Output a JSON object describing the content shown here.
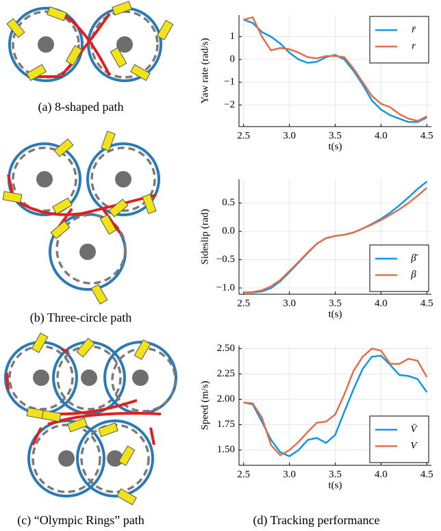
{
  "captions": [
    "(a) 8-shaped path",
    "(b) Three-circle path",
    "(c) “Olympic Rings” path",
    "(d) Tracking performance"
  ],
  "chart_data": [
    {
      "type": "line",
      "ylabel": "Yaw rate (rad/s)",
      "xlabel": "t(s)",
      "grid": true,
      "legend": "top-right",
      "x": [
        2.5,
        2.6,
        2.7,
        2.8,
        2.9,
        3.0,
        3.1,
        3.2,
        3.3,
        3.4,
        3.5,
        3.6,
        3.7,
        3.8,
        3.9,
        4.0,
        4.1,
        4.2,
        4.3,
        4.4,
        4.5
      ],
      "xlim": [
        2.45,
        4.55
      ],
      "xticks": [
        2.5,
        {
          "value": 3,
          "label": "3.0"
        },
        3.5,
        {
          "value": 4,
          "label": "4.0"
        },
        4.5
      ],
      "ylim": [
        -2.95,
        1.95
      ],
      "yticks": [
        {
          "value": -2,
          "label": "−2"
        },
        {
          "value": -1,
          "label": "−1"
        },
        0,
        1
      ],
      "series": [
        {
          "name": "r̄",
          "color": "#0f96e6",
          "values": [
            1.75,
            1.6,
            1.2,
            1.0,
            0.7,
            0.3,
            0.0,
            -0.15,
            -0.1,
            0.1,
            0.2,
            0.0,
            -0.5,
            -1.1,
            -1.8,
            -2.2,
            -2.45,
            -2.6,
            -2.75,
            -2.75,
            -2.55
          ]
        },
        {
          "name": "r",
          "color": "#e0704a",
          "values": [
            1.75,
            1.85,
            1.0,
            0.4,
            0.5,
            0.45,
            0.3,
            0.1,
            0.05,
            0.15,
            0.15,
            0.1,
            -0.4,
            -1.0,
            -1.6,
            -1.95,
            -2.1,
            -2.4,
            -2.6,
            -2.7,
            -2.5
          ]
        }
      ]
    },
    {
      "type": "line",
      "ylabel": "Sideslip (rad)",
      "xlabel": "t(s)",
      "grid": true,
      "legend": "bottom-right",
      "x": [
        2.5,
        2.6,
        2.7,
        2.8,
        2.9,
        3.0,
        3.1,
        3.2,
        3.3,
        3.4,
        3.5,
        3.6,
        3.7,
        3.8,
        3.9,
        4.0,
        4.1,
        4.2,
        4.3,
        4.4,
        4.5
      ],
      "xlim": [
        2.45,
        4.55
      ],
      "xticks": [
        2.5,
        {
          "value": 3,
          "label": "3.0"
        },
        3.5,
        {
          "value": 4,
          "label": "4.0"
        },
        4.5
      ],
      "ylim": [
        -1.11,
        0.92
      ],
      "yticks": [
        {
          "value": -1,
          "label": "−1.0"
        },
        {
          "value": -0.5,
          "label": "−0.5"
        },
        {
          "value": 0,
          "label": "0.0"
        },
        0.5
      ],
      "series": [
        {
          "name": "β̄",
          "color": "#0f96e6",
          "values": [
            -1.08,
            -1.08,
            -1.06,
            -1.0,
            -0.88,
            -0.72,
            -0.55,
            -0.38,
            -0.22,
            -0.12,
            -0.08,
            -0.06,
            -0.02,
            0.05,
            0.13,
            0.22,
            0.33,
            0.46,
            0.6,
            0.75,
            0.88
          ]
        },
        {
          "name": "β",
          "color": "#e0704a",
          "values": [
            -1.08,
            -1.07,
            -1.04,
            -0.97,
            -0.86,
            -0.7,
            -0.54,
            -0.37,
            -0.22,
            -0.12,
            -0.08,
            -0.06,
            -0.02,
            0.05,
            0.12,
            0.2,
            0.29,
            0.39,
            0.5,
            0.63,
            0.77
          ]
        }
      ]
    },
    {
      "type": "line",
      "ylabel": "Speed (m/s)",
      "xlabel": "t(s)",
      "grid": true,
      "legend": "bottom-right",
      "x": [
        2.5,
        2.6,
        2.7,
        2.8,
        2.9,
        3.0,
        3.1,
        3.2,
        3.3,
        3.4,
        3.5,
        3.6,
        3.7,
        3.8,
        3.9,
        4.0,
        4.1,
        4.2,
        4.3,
        4.4,
        4.5
      ],
      "xlim": [
        2.45,
        4.55
      ],
      "xticks": [
        2.5,
        {
          "value": 3,
          "label": "3.0"
        },
        3.5,
        {
          "value": 4,
          "label": "4.0"
        },
        4.5
      ],
      "ylim": [
        1.35,
        2.53
      ],
      "yticks": [
        {
          "value": 1.5,
          "label": "1.50"
        },
        1.75,
        {
          "value": 2,
          "label": "2.00"
        },
        2.25,
        {
          "value": 2.5,
          "label": "2.50"
        }
      ],
      "series": [
        {
          "name": "V̄",
          "color": "#0f96e6",
          "values": [
            1.97,
            1.95,
            1.78,
            1.6,
            1.48,
            1.44,
            1.5,
            1.6,
            1.62,
            1.57,
            1.65,
            1.88,
            2.1,
            2.3,
            2.42,
            2.43,
            2.34,
            2.24,
            2.23,
            2.2,
            2.07
          ]
        },
        {
          "name": "V",
          "color": "#e0704a",
          "values": [
            1.97,
            1.96,
            1.82,
            1.55,
            1.45,
            1.5,
            1.58,
            1.68,
            1.77,
            1.78,
            1.85,
            2.05,
            2.28,
            2.42,
            2.5,
            2.48,
            2.35,
            2.35,
            2.4,
            2.38,
            2.22
          ]
        }
      ]
    }
  ]
}
